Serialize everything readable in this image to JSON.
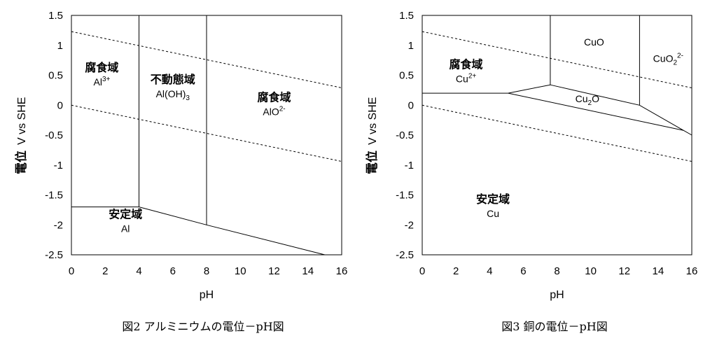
{
  "chart_data": [
    {
      "type": "line",
      "caption": "図2 アルミニウムの電位－pH図",
      "xlabel": "pH",
      "ylabel_main": "電位",
      "ylabel_unit": "V vs SHE",
      "xlim": [
        0,
        16
      ],
      "ylim": [
        -2.5,
        1.5
      ],
      "xticks": [
        0,
        2,
        4,
        6,
        8,
        10,
        12,
        14,
        16
      ],
      "yticks": [
        1.5,
        1,
        0.5,
        0,
        -0.5,
        -1,
        -1.5,
        -2,
        -2.5
      ],
      "ytick_labels": [
        "1.5",
        "1",
        "0.5",
        "0",
        "-0.5",
        "-1",
        "-1.5",
        "-2",
        "-2.5"
      ],
      "grid": false,
      "boundaries": [
        {
          "style": "solid",
          "points": [
            [
              0,
              -1.7
            ],
            [
              4,
              -1.7
            ]
          ]
        },
        {
          "style": "solid",
          "points": [
            [
              4,
              -1.7
            ],
            [
              8,
              -2.0
            ],
            [
              15,
              -2.5
            ]
          ]
        },
        {
          "style": "solid",
          "points": [
            [
              4,
              -1.7
            ],
            [
              4,
              1.5
            ]
          ]
        },
        {
          "style": "solid",
          "points": [
            [
              8,
              -2.0
            ],
            [
              8,
              1.5
            ]
          ]
        },
        {
          "style": "dashed",
          "points": [
            [
              0,
              1.23
            ],
            [
              16,
              0.29
            ]
          ]
        },
        {
          "style": "dashed",
          "points": [
            [
              0,
              0.0
            ],
            [
              16,
              -0.94
            ]
          ]
        }
      ],
      "regions": [
        {
          "name": "腐食域",
          "species": "Al",
          "sup": "3+",
          "sub": "",
          "x": 1.8,
          "y": 0.45
        },
        {
          "name": "不動態域",
          "species": "Al(OH)",
          "sup": "",
          "sub": "3",
          "x": 6.0,
          "y": 0.25
        },
        {
          "name": "腐食域",
          "species": "AlO",
          "sup": "2-",
          "sub": "",
          "x": 12.0,
          "y": -0.05
        },
        {
          "name": "安定域",
          "species": "Al",
          "sup": "",
          "sub": "",
          "x": 3.2,
          "y": -2.0
        }
      ]
    },
    {
      "type": "line",
      "caption": "図3 銅の電位－pH図",
      "xlabel": "pH",
      "ylabel_main": "電位",
      "ylabel_unit": "V vs SHE",
      "xlim": [
        0,
        16
      ],
      "ylim": [
        -2.5,
        1.5
      ],
      "xticks": [
        0,
        2,
        4,
        6,
        8,
        10,
        12,
        14,
        16
      ],
      "yticks": [
        1.5,
        1,
        0.5,
        0,
        -0.5,
        -1,
        -1.5,
        -2,
        -2.5
      ],
      "ytick_labels": [
        "1.5",
        "1",
        "0.5",
        "0",
        "-0.5",
        "-1",
        "-1.5",
        "-2",
        "-2.5"
      ],
      "grid": false,
      "boundaries": [
        {
          "style": "solid",
          "points": [
            [
              0,
              0.2
            ],
            [
              5.1,
              0.2
            ]
          ]
        },
        {
          "style": "solid",
          "points": [
            [
              5.1,
              0.2
            ],
            [
              7.6,
              0.34
            ],
            [
              12.9,
              0.0
            ],
            [
              15.5,
              -0.42
            ],
            [
              16,
              -0.5
            ]
          ]
        },
        {
          "style": "solid",
          "points": [
            [
              5.1,
              0.2
            ],
            [
              15.5,
              -0.42
            ]
          ]
        },
        {
          "style": "solid",
          "points": [
            [
              7.6,
              0.34
            ],
            [
              7.6,
              1.5
            ]
          ]
        },
        {
          "style": "solid",
          "points": [
            [
              12.9,
              0.0
            ],
            [
              12.9,
              1.5
            ]
          ]
        },
        {
          "style": "dashed",
          "points": [
            [
              0,
              1.23
            ],
            [
              16,
              0.29
            ]
          ]
        },
        {
          "style": "dashed",
          "points": [
            [
              0,
              0.0
            ],
            [
              16,
              -0.94
            ]
          ]
        }
      ],
      "regions": [
        {
          "name": "腐食域",
          "species": "Cu",
          "sup": "2+",
          "sub": "",
          "x": 2.6,
          "y": 0.5
        },
        {
          "name": "",
          "species": "CuO",
          "sup": "",
          "sub": "",
          "x": 10.2,
          "y": 1.0
        },
        {
          "name": "",
          "species": "CuO",
          "sup": "2-",
          "sub": "2",
          "x": 14.6,
          "y": 0.72
        },
        {
          "name": "",
          "species": "Cu",
          "sup": "",
          "sub": "2",
          "species_tail": "O",
          "x": 9.8,
          "y": 0.05
        },
        {
          "name": "安定域",
          "species": "Cu",
          "sup": "",
          "sub": "",
          "x": 4.2,
          "y": -1.75
        }
      ]
    }
  ]
}
